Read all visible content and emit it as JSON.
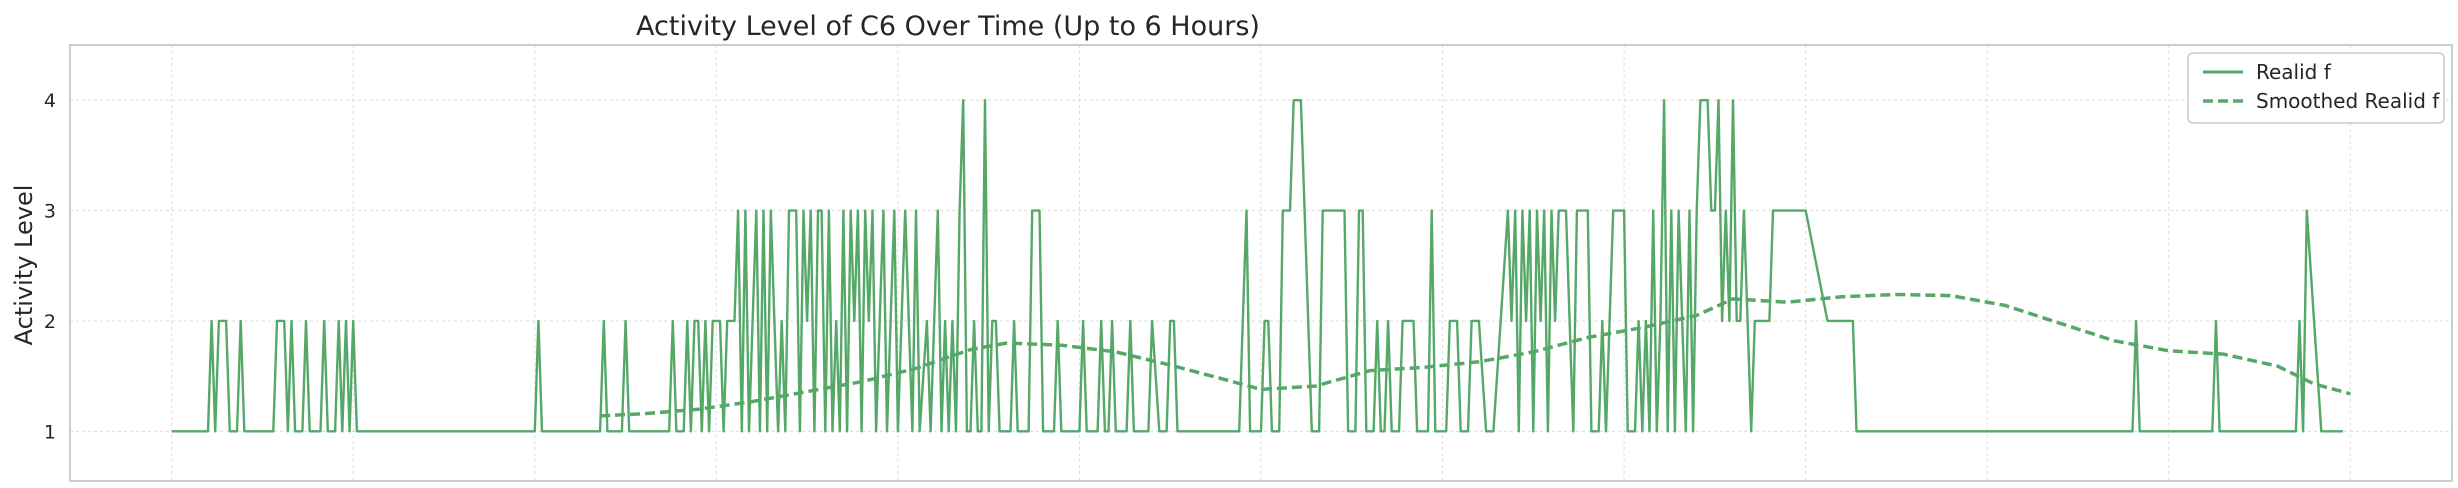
{
  "colors": {
    "series": "#55a868",
    "grid": "#dcdcdc",
    "frame": "#cccccc",
    "text": "#262626",
    "legend_border": "#cccccc"
  },
  "chart_data": {
    "type": "line",
    "title": "Activity Level of C6 Over Time (Up to 6 Hours)",
    "xlabel": "",
    "ylabel": "Activity Level",
    "xlim": [
      -0.28,
      6.28
    ],
    "ylim": [
      0.55,
      4.5
    ],
    "y_ticks": [
      1,
      2,
      3,
      4
    ],
    "x_tick_labels": [],
    "grid": true,
    "legend": {
      "placement": "top-right",
      "entries": [
        {
          "label": "Realid f",
          "style": "solid"
        },
        {
          "label": "Smoothed Realid f",
          "style": "dashed"
        }
      ]
    },
    "series": [
      {
        "name": "Realid f",
        "style": "solid",
        "points": [
          [
            0.0,
            1
          ],
          [
            0.1,
            1
          ],
          [
            0.11,
            2
          ],
          [
            0.12,
            1
          ],
          [
            0.13,
            2
          ],
          [
            0.15,
            2
          ],
          [
            0.16,
            1
          ],
          [
            0.18,
            1
          ],
          [
            0.19,
            2
          ],
          [
            0.2,
            1
          ],
          [
            0.28,
            1
          ],
          [
            0.29,
            2
          ],
          [
            0.31,
            2
          ],
          [
            0.32,
            1
          ],
          [
            0.33,
            2
          ],
          [
            0.34,
            1
          ],
          [
            0.36,
            1
          ],
          [
            0.37,
            2
          ],
          [
            0.38,
            1
          ],
          [
            0.41,
            1
          ],
          [
            0.42,
            2
          ],
          [
            0.43,
            1
          ],
          [
            0.45,
            1
          ],
          [
            0.46,
            2
          ],
          [
            0.47,
            1
          ],
          [
            0.48,
            2
          ],
          [
            0.49,
            1
          ],
          [
            0.5,
            2
          ],
          [
            0.51,
            1
          ],
          [
            0.52,
            1
          ],
          [
            1.0,
            1
          ],
          [
            1.01,
            2
          ],
          [
            1.02,
            1
          ],
          [
            1.18,
            1
          ],
          [
            1.19,
            2
          ],
          [
            1.2,
            1
          ],
          [
            1.24,
            1
          ],
          [
            1.25,
            2
          ],
          [
            1.26,
            1
          ],
          [
            1.37,
            1
          ],
          [
            1.38,
            2
          ],
          [
            1.39,
            1
          ],
          [
            1.41,
            1
          ],
          [
            1.42,
            2
          ],
          [
            1.43,
            1
          ],
          [
            1.44,
            2
          ],
          [
            1.45,
            2
          ],
          [
            1.46,
            1
          ],
          [
            1.47,
            2
          ],
          [
            1.48,
            1
          ],
          [
            1.49,
            2
          ],
          [
            1.51,
            2
          ],
          [
            1.52,
            1
          ],
          [
            1.53,
            2
          ],
          [
            1.54,
            2
          ],
          [
            1.55,
            2
          ],
          [
            1.56,
            3
          ],
          [
            1.57,
            1
          ],
          [
            1.58,
            3
          ],
          [
            1.59,
            1
          ],
          [
            1.6,
            2
          ],
          [
            1.61,
            3
          ],
          [
            1.62,
            1
          ],
          [
            1.63,
            3
          ],
          [
            1.64,
            1
          ],
          [
            1.65,
            3
          ],
          [
            1.66,
            2
          ],
          [
            1.67,
            1
          ],
          [
            1.68,
            2
          ],
          [
            1.69,
            1
          ],
          [
            1.7,
            3
          ],
          [
            1.72,
            3
          ],
          [
            1.73,
            1
          ],
          [
            1.74,
            3
          ],
          [
            1.75,
            2
          ],
          [
            1.76,
            3
          ],
          [
            1.77,
            1
          ],
          [
            1.78,
            3
          ],
          [
            1.79,
            3
          ],
          [
            1.8,
            1
          ],
          [
            1.81,
            3
          ],
          [
            1.82,
            1
          ],
          [
            1.83,
            2
          ],
          [
            1.84,
            1
          ],
          [
            1.85,
            3
          ],
          [
            1.86,
            1
          ],
          [
            1.87,
            3
          ],
          [
            1.88,
            2
          ],
          [
            1.89,
            3
          ],
          [
            1.9,
            1
          ],
          [
            1.91,
            3
          ],
          [
            1.92,
            2
          ],
          [
            1.93,
            3
          ],
          [
            1.94,
            1
          ],
          [
            1.95,
            2
          ],
          [
            1.96,
            3
          ],
          [
            1.97,
            1
          ],
          [
            1.98,
            2
          ],
          [
            1.99,
            3
          ],
          [
            2.0,
            1
          ],
          [
            2.01,
            2
          ],
          [
            2.02,
            3
          ],
          [
            2.03,
            2
          ],
          [
            2.04,
            1
          ],
          [
            2.05,
            3
          ],
          [
            2.06,
            1
          ],
          [
            2.08,
            2
          ],
          [
            2.09,
            1
          ],
          [
            2.1,
            2
          ],
          [
            2.11,
            3
          ],
          [
            2.12,
            1
          ],
          [
            2.13,
            2
          ],
          [
            2.14,
            1
          ],
          [
            2.15,
            2
          ],
          [
            2.16,
            1
          ],
          [
            2.17,
            3
          ],
          [
            2.18,
            4
          ],
          [
            2.19,
            1
          ],
          [
            2.2,
            1
          ],
          [
            2.21,
            2
          ],
          [
            2.22,
            1
          ],
          [
            2.23,
            1
          ],
          [
            2.24,
            4
          ],
          [
            2.25,
            1
          ],
          [
            2.26,
            2
          ],
          [
            2.27,
            2
          ],
          [
            2.28,
            1
          ],
          [
            2.31,
            1
          ],
          [
            2.32,
            2
          ],
          [
            2.33,
            1
          ],
          [
            2.36,
            1
          ],
          [
            2.37,
            3
          ],
          [
            2.39,
            3
          ],
          [
            2.4,
            1
          ],
          [
            2.43,
            1
          ],
          [
            2.44,
            2
          ],
          [
            2.45,
            1
          ],
          [
            2.5,
            1
          ],
          [
            2.51,
            2
          ],
          [
            2.52,
            1
          ],
          [
            2.55,
            1
          ],
          [
            2.56,
            2
          ],
          [
            2.57,
            1
          ],
          [
            2.58,
            1
          ],
          [
            2.59,
            2
          ],
          [
            2.6,
            1
          ],
          [
            2.63,
            1
          ],
          [
            2.64,
            2
          ],
          [
            2.65,
            1
          ],
          [
            2.69,
            1
          ],
          [
            2.7,
            2
          ],
          [
            2.72,
            1
          ],
          [
            2.74,
            1
          ],
          [
            2.75,
            2
          ],
          [
            2.76,
            2
          ],
          [
            2.77,
            1
          ],
          [
            2.94,
            1
          ],
          [
            2.95,
            2
          ],
          [
            2.96,
            3
          ],
          [
            2.97,
            1
          ],
          [
            3.0,
            1
          ],
          [
            3.01,
            2
          ],
          [
            3.02,
            2
          ],
          [
            3.03,
            1
          ],
          [
            3.05,
            1
          ],
          [
            3.06,
            3
          ],
          [
            3.08,
            3
          ],
          [
            3.09,
            4
          ],
          [
            3.11,
            4
          ],
          [
            3.12,
            3
          ],
          [
            3.14,
            1
          ],
          [
            3.16,
            1
          ],
          [
            3.17,
            3
          ],
          [
            3.23,
            3
          ],
          [
            3.24,
            1
          ],
          [
            3.26,
            1
          ],
          [
            3.27,
            3
          ],
          [
            3.28,
            3
          ],
          [
            3.29,
            1
          ],
          [
            3.31,
            1
          ],
          [
            3.32,
            2
          ],
          [
            3.33,
            1
          ],
          [
            3.34,
            1
          ],
          [
            3.35,
            2
          ],
          [
            3.36,
            1
          ],
          [
            3.38,
            1
          ],
          [
            3.39,
            2
          ],
          [
            3.42,
            2
          ],
          [
            3.43,
            1
          ],
          [
            3.46,
            1
          ],
          [
            3.47,
            3
          ],
          [
            3.48,
            1
          ],
          [
            3.51,
            1
          ],
          [
            3.52,
            2
          ],
          [
            3.54,
            2
          ],
          [
            3.55,
            1
          ],
          [
            3.57,
            1
          ],
          [
            3.58,
            2
          ],
          [
            3.6,
            2
          ],
          [
            3.62,
            1
          ],
          [
            3.64,
            1
          ],
          [
            3.66,
            2
          ],
          [
            3.68,
            3
          ],
          [
            3.69,
            2
          ],
          [
            3.7,
            3
          ],
          [
            3.71,
            1
          ],
          [
            3.72,
            3
          ],
          [
            3.73,
            2
          ],
          [
            3.74,
            3
          ],
          [
            3.75,
            1
          ],
          [
            3.76,
            3
          ],
          [
            3.77,
            2
          ],
          [
            3.78,
            3
          ],
          [
            3.79,
            1
          ],
          [
            3.8,
            3
          ],
          [
            3.81,
            2
          ],
          [
            3.82,
            3
          ],
          [
            3.84,
            3
          ],
          [
            3.85,
            2
          ],
          [
            3.86,
            1
          ],
          [
            3.87,
            3
          ],
          [
            3.9,
            3
          ],
          [
            3.91,
            1
          ],
          [
            3.93,
            1
          ],
          [
            3.94,
            2
          ],
          [
            3.95,
            1
          ],
          [
            3.96,
            2
          ],
          [
            3.97,
            3
          ],
          [
            4.0,
            3
          ],
          [
            4.01,
            1
          ],
          [
            4.03,
            1
          ],
          [
            4.04,
            2
          ],
          [
            4.05,
            1
          ],
          [
            4.06,
            2
          ],
          [
            4.07,
            1
          ],
          [
            4.08,
            3
          ],
          [
            4.09,
            1
          ],
          [
            4.1,
            2
          ],
          [
            4.11,
            4
          ],
          [
            4.12,
            1
          ],
          [
            4.13,
            3
          ],
          [
            4.14,
            1
          ],
          [
            4.15,
            3
          ],
          [
            4.16,
            2
          ],
          [
            4.17,
            1
          ],
          [
            4.18,
            3
          ],
          [
            4.19,
            1
          ],
          [
            4.2,
            3
          ],
          [
            4.21,
            4
          ],
          [
            4.23,
            4
          ],
          [
            4.24,
            3
          ],
          [
            4.25,
            3
          ],
          [
            4.26,
            4
          ],
          [
            4.27,
            2
          ],
          [
            4.28,
            3
          ],
          [
            4.29,
            2
          ],
          [
            4.3,
            4
          ],
          [
            4.31,
            2
          ],
          [
            4.32,
            2
          ],
          [
            4.33,
            3
          ],
          [
            4.34,
            2
          ],
          [
            4.35,
            1
          ],
          [
            4.36,
            2
          ],
          [
            4.4,
            2
          ],
          [
            4.41,
            3
          ],
          [
            4.5,
            3
          ],
          [
            4.56,
            2
          ],
          [
            4.63,
            2
          ],
          [
            4.64,
            1
          ],
          [
            5.4,
            1
          ],
          [
            5.41,
            2
          ],
          [
            5.42,
            1
          ],
          [
            5.62,
            1
          ],
          [
            5.63,
            2
          ],
          [
            5.64,
            1
          ],
          [
            5.85,
            1
          ],
          [
            5.86,
            2
          ],
          [
            5.87,
            1
          ],
          [
            5.88,
            3
          ],
          [
            5.92,
            1
          ],
          [
            5.98,
            1
          ]
        ]
      },
      {
        "name": "Smoothed Realid f",
        "style": "dashed",
        "points": [
          [
            1.18,
            1.14
          ],
          [
            1.3,
            1.16
          ],
          [
            1.45,
            1.2
          ],
          [
            1.6,
            1.27
          ],
          [
            1.75,
            1.36
          ],
          [
            1.9,
            1.45
          ],
          [
            2.05,
            1.57
          ],
          [
            2.2,
            1.74
          ],
          [
            2.3,
            1.8
          ],
          [
            2.45,
            1.78
          ],
          [
            2.6,
            1.72
          ],
          [
            2.75,
            1.6
          ],
          [
            2.9,
            1.47
          ],
          [
            3.0,
            1.38
          ],
          [
            3.15,
            1.41
          ],
          [
            3.3,
            1.55
          ],
          [
            3.45,
            1.58
          ],
          [
            3.6,
            1.63
          ],
          [
            3.75,
            1.72
          ],
          [
            3.9,
            1.85
          ],
          [
            4.05,
            1.94
          ],
          [
            4.2,
            2.05
          ],
          [
            4.3,
            2.2
          ],
          [
            4.45,
            2.17
          ],
          [
            4.6,
            2.22
          ],
          [
            4.75,
            2.24
          ],
          [
            4.9,
            2.23
          ],
          [
            5.05,
            2.14
          ],
          [
            5.2,
            1.98
          ],
          [
            5.35,
            1.82
          ],
          [
            5.5,
            1.73
          ],
          [
            5.65,
            1.7
          ],
          [
            5.8,
            1.59
          ],
          [
            5.9,
            1.43
          ],
          [
            6.0,
            1.34
          ]
        ]
      }
    ]
  }
}
